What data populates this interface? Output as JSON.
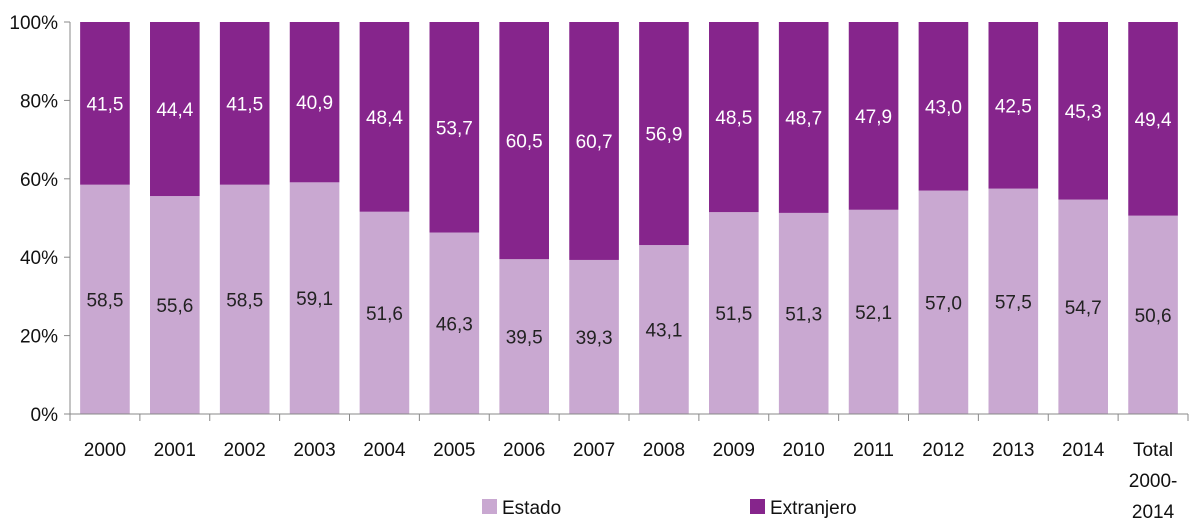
{
  "chart_data": {
    "type": "bar",
    "stacked": true,
    "categories": [
      "2000",
      "2001",
      "2002",
      "2003",
      "2004",
      "2005",
      "2006",
      "2007",
      "2008",
      "2009",
      "2010",
      "2011",
      "2012",
      "2013",
      "2014",
      "Total 2000-2014"
    ],
    "category_lines": [
      [
        "2000"
      ],
      [
        "2001"
      ],
      [
        "2002"
      ],
      [
        "2003"
      ],
      [
        "2004"
      ],
      [
        "2005"
      ],
      [
        "2006"
      ],
      [
        "2007"
      ],
      [
        "2008"
      ],
      [
        "2009"
      ],
      [
        "2010"
      ],
      [
        "2011"
      ],
      [
        "2012"
      ],
      [
        "2013"
      ],
      [
        "2014"
      ],
      [
        "Total",
        "2000-",
        "2014"
      ]
    ],
    "series": [
      {
        "name": "Estado",
        "color": "#c9a8d1",
        "values": [
          58.5,
          55.6,
          58.5,
          59.1,
          51.6,
          46.3,
          39.5,
          39.3,
          43.1,
          51.5,
          51.3,
          52.1,
          57.0,
          57.5,
          54.7,
          50.6
        ],
        "labels": [
          "58,5",
          "55,6",
          "58,5",
          "59,1",
          "51,6",
          "46,3",
          "39,5",
          "39,3",
          "43,1",
          "51,5",
          "51,3",
          "52,1",
          "57,0",
          "57,5",
          "54,7",
          "50,6"
        ]
      },
      {
        "name": "Extranjero",
        "color": "#86258c",
        "values": [
          41.5,
          44.4,
          41.5,
          40.9,
          48.4,
          53.7,
          60.5,
          60.7,
          56.9,
          48.5,
          48.7,
          47.9,
          43.0,
          42.5,
          45.3,
          49.4
        ],
        "labels": [
          "41,5",
          "44,4",
          "41,5",
          "40,9",
          "48,4",
          "53,7",
          "60,5",
          "60,7",
          "56,9",
          "48,5",
          "48,7",
          "47,9",
          "43,0",
          "42,5",
          "45,3",
          "49,4"
        ]
      }
    ],
    "ylim": [
      0,
      100
    ],
    "yticks": [
      "0%",
      "20%",
      "40%",
      "60%",
      "80%",
      "100%"
    ],
    "grid": false,
    "legend": "bottom-center"
  }
}
